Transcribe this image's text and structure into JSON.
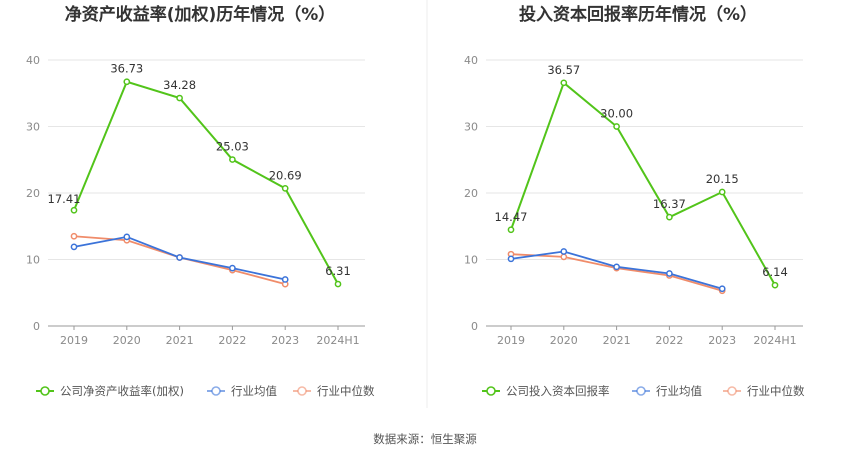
{
  "source": "数据来源：恒生聚源",
  "chart_data": [
    {
      "type": "line",
      "title": "净资产收益率(加权)历年情况（%）",
      "categories": [
        "2019",
        "2020",
        "2021",
        "2022",
        "2023",
        "2024H1"
      ],
      "ylim": [
        0,
        40
      ],
      "yticks": [
        0,
        10,
        20,
        30,
        40
      ],
      "grid": true,
      "legend_position": "bottom",
      "series": [
        {
          "name": "公司净资产收益率(加权)",
          "color": "#52c41a",
          "values": [
            17.41,
            36.73,
            34.28,
            25.03,
            20.69,
            6.31
          ],
          "labels": [
            "17.41",
            "36.73",
            "34.28",
            "25.03",
            "20.69",
            "6.31"
          ]
        },
        {
          "name": "行业均值",
          "color": "#3b73d9",
          "values": [
            11.9,
            13.4,
            10.3,
            8.7,
            7.0,
            null
          ]
        },
        {
          "name": "行业中位数",
          "color": "#f08c6a",
          "values": [
            13.5,
            12.9,
            10.3,
            8.4,
            6.3,
            null
          ]
        }
      ]
    },
    {
      "type": "line",
      "title": "投入资本回报率历年情况（%）",
      "categories": [
        "2019",
        "2020",
        "2021",
        "2022",
        "2023",
        "2024H1"
      ],
      "ylim": [
        0,
        40
      ],
      "yticks": [
        0,
        10,
        20,
        30,
        40
      ],
      "grid": true,
      "legend_position": "bottom",
      "series": [
        {
          "name": "公司投入资本回报率",
          "color": "#52c41a",
          "values": [
            14.47,
            36.57,
            30.0,
            16.37,
            20.15,
            6.14
          ],
          "labels": [
            "14.47",
            "36.57",
            "30.00",
            "16.37",
            "20.15",
            "6.14"
          ]
        },
        {
          "name": "行业均值",
          "color": "#3b73d9",
          "values": [
            10.1,
            11.2,
            8.9,
            7.9,
            5.6,
            null
          ]
        },
        {
          "name": "行业中位数",
          "color": "#f08c6a",
          "values": [
            10.8,
            10.4,
            8.7,
            7.6,
            5.3,
            null
          ]
        }
      ]
    }
  ]
}
